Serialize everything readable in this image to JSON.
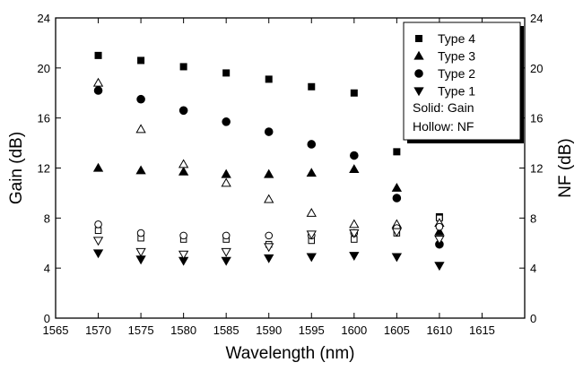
{
  "chart_data": {
    "type": "scatter",
    "xlabel": "Wavelength (nm)",
    "ylabel": "Gain (dB)",
    "y2label": "NF (dB)",
    "xlim": [
      1565,
      1620
    ],
    "ylim": [
      0,
      24
    ],
    "y2lim": [
      0,
      24
    ],
    "x_ticks": [
      "1565",
      "1570",
      "1575",
      "1580",
      "1585",
      "1590",
      "1595",
      "1600",
      "1605",
      "1610",
      "1615"
    ],
    "y_ticks": [
      "0",
      "4",
      "8",
      "12",
      "16",
      "20",
      "24"
    ],
    "y2_ticks": [
      "0",
      "4",
      "8",
      "12",
      "16",
      "20",
      "24"
    ],
    "grid": false,
    "legend_position": "top-right",
    "legend": {
      "entries": [
        {
          "marker": "square",
          "label": "Type 4"
        },
        {
          "marker": "triangle-up",
          "label": "Type 3"
        },
        {
          "marker": "circle",
          "label": "Type 2"
        },
        {
          "marker": "triangle-down",
          "label": "Type 1"
        }
      ],
      "notes": [
        "Solid:  Gain",
        "Hollow: NF"
      ]
    },
    "x": [
      1570,
      1575,
      1580,
      1585,
      1590,
      1595,
      1600,
      1605,
      1610
    ],
    "series": [
      {
        "name": "Type 4",
        "marker": "square",
        "filled": true,
        "axis": "left",
        "values": [
          21.0,
          20.6,
          20.1,
          19.6,
          19.1,
          18.5,
          18.0,
          13.3,
          8.1
        ]
      },
      {
        "name": "Type 4",
        "marker": "square",
        "filled": false,
        "axis": "right",
        "values": [
          7.0,
          6.4,
          6.3,
          6.3,
          5.9,
          6.2,
          6.3,
          6.8,
          8.0
        ]
      },
      {
        "name": "Type 3",
        "marker": "triangle-up",
        "filled": true,
        "axis": "left",
        "values": [
          12.0,
          11.8,
          11.7,
          11.5,
          11.5,
          11.6,
          11.9,
          10.4,
          6.9
        ]
      },
      {
        "name": "Type 3",
        "marker": "triangle-up",
        "filled": false,
        "axis": "right",
        "values": [
          18.8,
          15.1,
          12.3,
          10.8,
          9.5,
          8.4,
          7.5,
          7.5,
          7.6
        ]
      },
      {
        "name": "Type 2",
        "marker": "circle",
        "filled": true,
        "axis": "left",
        "values": [
          18.2,
          17.5,
          16.6,
          15.7,
          14.9,
          13.9,
          13.0,
          9.6,
          5.9
        ]
      },
      {
        "name": "Type 2",
        "marker": "circle",
        "filled": false,
        "axis": "right",
        "values": [
          7.5,
          6.8,
          6.6,
          6.6,
          6.6,
          6.6,
          6.8,
          7.2,
          7.3
        ]
      },
      {
        "name": "Type 1",
        "marker": "triangle-down",
        "filled": true,
        "axis": "left",
        "values": [
          5.2,
          4.7,
          4.6,
          4.6,
          4.8,
          4.9,
          5.0,
          4.9,
          4.2
        ]
      },
      {
        "name": "Type 1",
        "marker": "triangle-down",
        "filled": false,
        "axis": "right",
        "values": [
          6.2,
          5.3,
          5.1,
          5.3,
          5.7,
          6.7,
          6.8,
          6.9,
          6.3
        ]
      }
    ]
  }
}
